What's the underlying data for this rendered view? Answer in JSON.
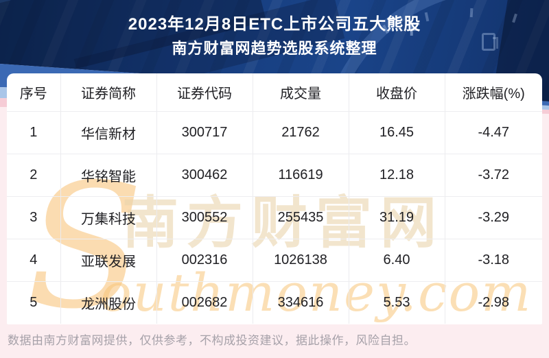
{
  "header": {
    "title_line1": "2023年12月8日ETC上市公司五大熊股",
    "title_line2": "南方财富网趋势选股系统整理"
  },
  "table": {
    "columns": [
      "序号",
      "证券简称",
      "证券代码",
      "成交量",
      "收盘价",
      "涨跌幅(%)"
    ],
    "rows": [
      [
        "1",
        "华信新材",
        "300717",
        "21762",
        "16.45",
        "-4.47"
      ],
      [
        "2",
        "华铭智能",
        "300462",
        "116619",
        "12.18",
        "-3.72"
      ],
      [
        "3",
        "万集科技",
        "300552",
        "255435",
        "31.19",
        "-3.29"
      ],
      [
        "4",
        "亚联发展",
        "002316",
        "1026138",
        "6.40",
        "-3.18"
      ],
      [
        "5",
        "龙洲股份",
        "002682",
        "334616",
        "5.53",
        "-2.98"
      ]
    ]
  },
  "watermark": {
    "cjk": "南方财富网",
    "latin_initial": "S",
    "latin_script": "outhmoney.com"
  },
  "footer": {
    "disclaimer": "数据由南方财富网提供，仅供参考，不构成投资建议，据此操作，风险自担。"
  },
  "colors": {
    "header_bg": "#163c7c",
    "stripe_royal": "#3b69b4",
    "stripe_light": "#a9c5e8",
    "body_bg": "#fcedf0",
    "card_bg": "#ffffff",
    "cell_text": "#202024",
    "watermark_orange": "#f7ba64",
    "watermark_tan": "#e9d3ac",
    "footer_text": "#a6a1a9",
    "title_text": "#ffffff"
  }
}
